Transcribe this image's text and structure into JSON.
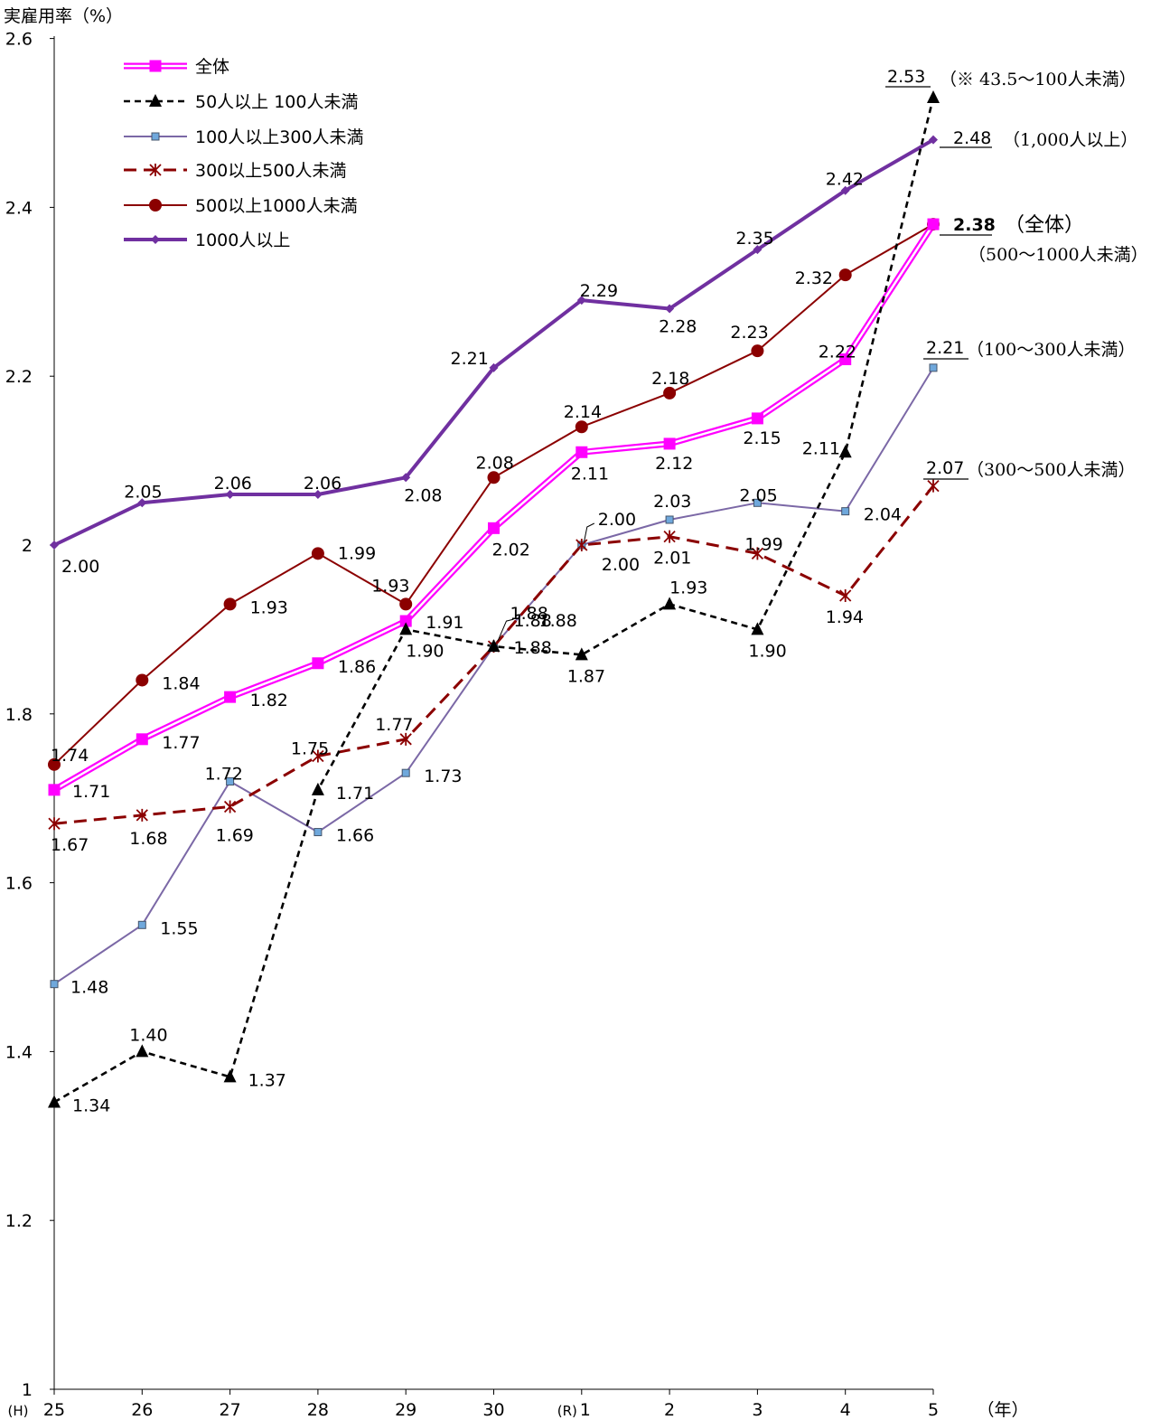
{
  "chart_data": {
    "type": "line",
    "ylabel": "実雇用率（%）",
    "xlabel": "（年）",
    "era_label_h": "(H)",
    "era_label_r": "(R)",
    "ylim": [
      1,
      2.6
    ],
    "yticks": [
      "1",
      "1.2",
      "1.4",
      "1.6",
      "1.8",
      "2",
      "2.2",
      "2.4",
      "2.6"
    ],
    "categories": [
      "25",
      "26",
      "27",
      "28",
      "29",
      "30",
      "1",
      "2",
      "3",
      "4",
      "5"
    ],
    "legend_position": "top-left",
    "series": [
      {
        "name": "全体",
        "color": "#ff00ff",
        "marker": "square",
        "values": [
          1.71,
          1.77,
          1.82,
          1.86,
          1.91,
          2.02,
          2.11,
          2.12,
          2.15,
          2.22,
          2.38
        ]
      },
      {
        "name": "50人以上 100人未満",
        "color": "#000000",
        "marker": "triangle",
        "values": [
          1.34,
          1.4,
          1.37,
          1.71,
          1.9,
          1.88,
          1.87,
          1.93,
          1.9,
          2.11,
          2.53
        ]
      },
      {
        "name": "100人以上300人未満",
        "color": "#7b68a6",
        "marker": "small-square",
        "values": [
          1.48,
          1.55,
          1.72,
          1.66,
          1.73,
          1.88,
          2.0,
          2.03,
          2.05,
          2.04,
          2.21
        ]
      },
      {
        "name": "300以上500人未満",
        "color": "#8b0000",
        "marker": "asterisk",
        "values": [
          1.67,
          1.68,
          1.69,
          1.75,
          1.77,
          1.88,
          2.0,
          2.01,
          1.99,
          1.94,
          2.07
        ]
      },
      {
        "name": "500以上1000人未満",
        "color": "#8b0000",
        "marker": "circle",
        "values": [
          1.74,
          1.84,
          1.93,
          1.99,
          1.93,
          2.08,
          2.14,
          2.18,
          2.23,
          2.32,
          2.38
        ]
      },
      {
        "name": "1000人以上",
        "color": "#7030a0",
        "marker": "diamond",
        "values": [
          2.0,
          2.05,
          2.06,
          2.06,
          2.08,
          2.21,
          2.29,
          2.28,
          2.35,
          2.42,
          2.48
        ]
      }
    ],
    "labels": {
      "total": [
        "1.71",
        "1.77",
        "1.82",
        "1.86",
        "1.91",
        "2.02",
        "2.11",
        "2.12",
        "2.15",
        "2.22"
      ],
      "s50": [
        "1.34",
        "1.40",
        "1.37",
        "1.71",
        "1.90",
        "1.88",
        "1.87",
        "1.93",
        "1.90",
        "2.11"
      ],
      "s100": [
        "1.48",
        "1.55",
        "1.72",
        "1.66",
        "1.73",
        "1.88",
        "2.00",
        "2.03",
        "2.05",
        "2.04"
      ],
      "s300": [
        "1.67",
        "1.68",
        "1.69",
        "1.75",
        "1.77",
        "1.88",
        "2.00",
        "2.01",
        "1.99",
        "1.94"
      ],
      "s500": [
        "1.74",
        "1.84",
        "1.93",
        "1.99",
        "1.93",
        "2.08",
        "2.14",
        "2.18",
        "2.23",
        "2.32"
      ],
      "s1000": [
        "2.00",
        "2.05",
        "2.06",
        "2.06",
        "2.08",
        "2.21",
        "2.29",
        "2.28",
        "2.35",
        "2.42"
      ]
    },
    "end_annotations": [
      {
        "value": "2.53",
        "text": "（※ 43.5～100人未満）"
      },
      {
        "value": "2.48",
        "text": "（1,000人以上）"
      },
      {
        "value": "2.38",
        "text": "（全体）",
        "sub": "（500～1000人未満）"
      },
      {
        "value": "2.21",
        "text": "（100～300人未満）"
      },
      {
        "value": "2.07",
        "text": "（300～500人未満）"
      }
    ]
  }
}
